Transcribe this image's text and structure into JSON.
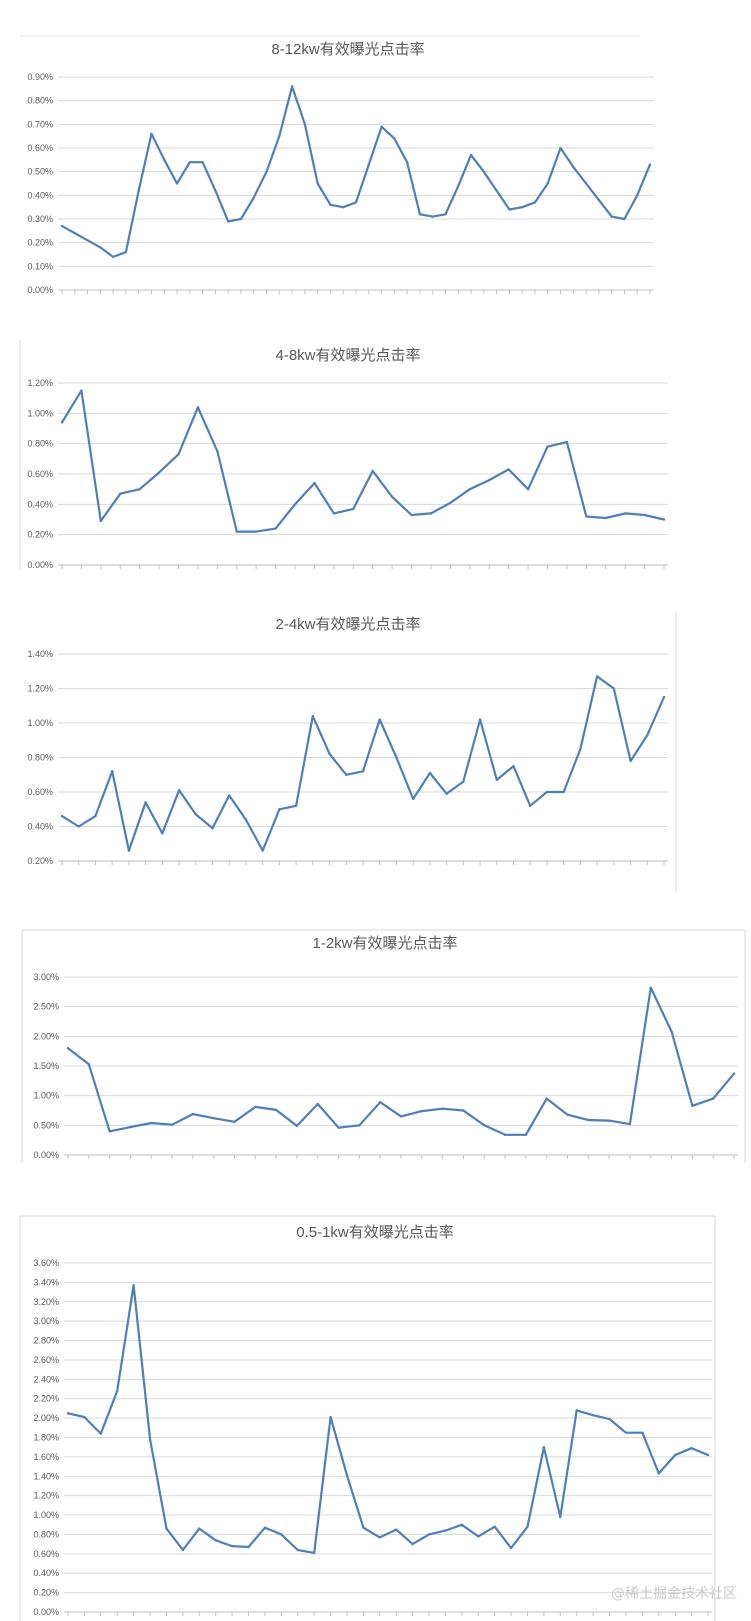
{
  "watermark": "@稀土掘金技术社区",
  "style": {
    "line_color": "#4f7fba",
    "grid_color": "#d9d9d9",
    "text_color": "#595959"
  },
  "chart_data": [
    {
      "type": "line",
      "title": "8-12kw有效曝光点击率",
      "yticks": [
        "0.00%",
        "0.10%",
        "0.20%",
        "0.30%",
        "0.40%",
        "0.50%",
        "0.60%",
        "0.70%",
        "0.80%",
        "0.90%"
      ],
      "ylim": [
        0,
        0.9
      ],
      "grid": true,
      "values": [
        0.27,
        0.24,
        0.21,
        0.18,
        0.14,
        0.16,
        0.42,
        0.66,
        0.55,
        0.45,
        0.54,
        0.54,
        0.42,
        0.29,
        0.3,
        0.39,
        0.5,
        0.65,
        0.86,
        0.7,
        0.45,
        0.36,
        0.35,
        0.37,
        0.53,
        0.69,
        0.64,
        0.54,
        0.32,
        0.31,
        0.32,
        0.44,
        0.57,
        0.5,
        0.42,
        0.34,
        0.35,
        0.37,
        0.45,
        0.6,
        0.52,
        0.45,
        0.38,
        0.31,
        0.3,
        0.4,
        0.53
      ]
    },
    {
      "type": "line",
      "title": "4-8kw有效曝光点击率",
      "yticks": [
        "0.00%",
        "0.20%",
        "0.40%",
        "0.60%",
        "0.80%",
        "1.00%",
        "1.20%"
      ],
      "ylim": [
        0,
        1.2
      ],
      "grid": true,
      "values": [
        0.94,
        1.15,
        0.29,
        0.47,
        0.5,
        0.61,
        0.73,
        1.04,
        0.75,
        0.22,
        0.22,
        0.24,
        0.4,
        0.54,
        0.34,
        0.37,
        0.62,
        0.45,
        0.33,
        0.34,
        0.41,
        0.5,
        0.56,
        0.63,
        0.5,
        0.78,
        0.81,
        0.32,
        0.31,
        0.34,
        0.33,
        0.3
      ]
    },
    {
      "type": "line",
      "title": "2-4kw有效曝光点击率",
      "yticks": [
        "0.20%",
        "0.40%",
        "0.60%",
        "0.80%",
        "1.00%",
        "1.20%",
        "1.40%"
      ],
      "ylim": [
        0.2,
        1.4
      ],
      "grid": true,
      "values": [
        0.46,
        0.4,
        0.46,
        0.72,
        0.26,
        0.54,
        0.36,
        0.61,
        0.47,
        0.39,
        0.58,
        0.44,
        0.26,
        0.5,
        0.52,
        1.04,
        0.82,
        0.7,
        0.72,
        1.02,
        0.8,
        0.56,
        0.71,
        0.59,
        0.66,
        1.02,
        0.67,
        0.75,
        0.52,
        0.6,
        0.6,
        0.85,
        1.27,
        1.2,
        0.78,
        0.93,
        1.15
      ]
    },
    {
      "type": "line",
      "title": "1-2kw有效曝光点击率",
      "yticks": [
        "0.00%",
        "0.50%",
        "1.00%",
        "1.50%",
        "2.00%",
        "2.50%",
        "3.00%"
      ],
      "ylim": [
        0,
        3.0
      ],
      "grid": true,
      "values": [
        1.8,
        1.53,
        0.4,
        0.47,
        0.54,
        0.51,
        0.69,
        0.62,
        0.56,
        0.81,
        0.76,
        0.49,
        0.86,
        0.46,
        0.5,
        0.89,
        0.65,
        0.74,
        0.78,
        0.75,
        0.5,
        0.34,
        0.34,
        0.95,
        0.68,
        0.59,
        0.58,
        0.52,
        2.82,
        2.08,
        0.83,
        0.95,
        1.37
      ]
    },
    {
      "type": "line",
      "title": "0.5-1kw有效曝光点击率",
      "yticks": [
        "0.00%",
        "0.20%",
        "0.40%",
        "0.60%",
        "0.80%",
        "1.00%",
        "1.20%",
        "1.40%",
        "1.60%",
        "1.80%",
        "2.00%",
        "2.20%",
        "2.40%",
        "2.60%",
        "2.80%",
        "3.00%",
        "3.20%",
        "3.40%",
        "3.60%"
      ],
      "ylim": [
        0,
        3.6
      ],
      "grid": true,
      "values": [
        2.05,
        2.01,
        1.84,
        2.28,
        3.37,
        1.78,
        0.86,
        0.64,
        0.86,
        0.74,
        0.68,
        0.67,
        0.87,
        0.8,
        0.64,
        0.61,
        2.01,
        1.41,
        0.87,
        0.77,
        0.85,
        0.7,
        0.8,
        0.84,
        0.9,
        0.78,
        0.88,
        0.66,
        0.88,
        1.7,
        0.98,
        2.08,
        2.03,
        1.99,
        1.85,
        1.85,
        1.43,
        1.62,
        1.69,
        1.62
      ]
    }
  ]
}
